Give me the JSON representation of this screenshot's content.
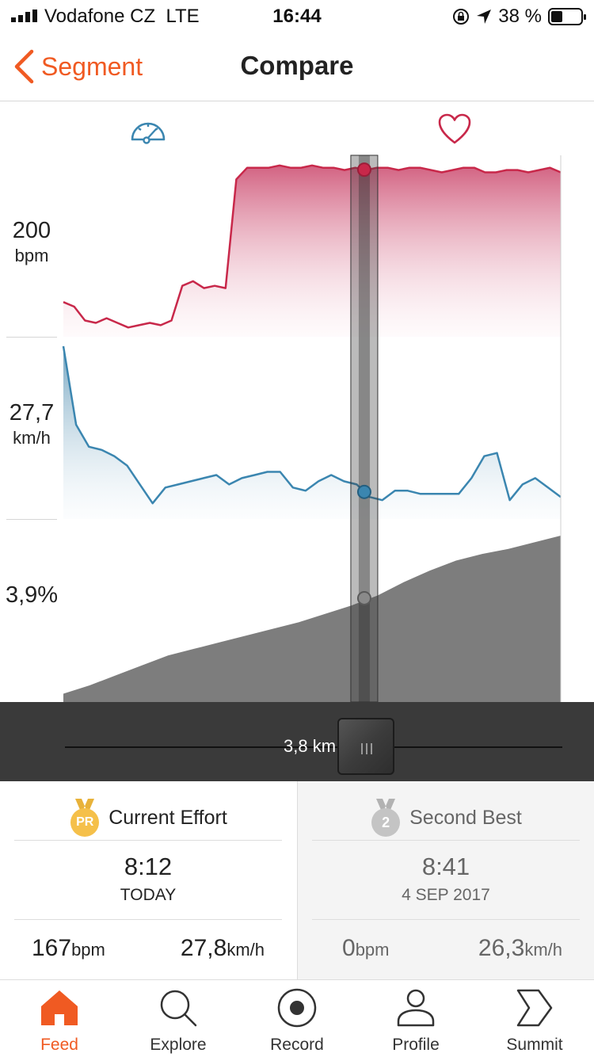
{
  "status_bar": {
    "carrier": "Vodafone CZ",
    "network": "LTE",
    "time": "16:44",
    "battery": "38 %"
  },
  "nav": {
    "back_label": "Segment",
    "title": "Compare"
  },
  "metrics": {
    "heart_rate": {
      "value": "200",
      "unit": "bpm",
      "color": "#c8284a"
    },
    "speed": {
      "value": "27,7",
      "unit": "km/h",
      "color": "#3b86b0"
    },
    "grade": {
      "value": "3,9%",
      "color": "#7d7d7d"
    }
  },
  "chart_data": {
    "type": "area",
    "x_range_fraction": [
      0,
      1
    ],
    "cursor_fraction": 0.605,
    "series": [
      {
        "key": "heart_rate",
        "values": [
          160,
          158,
          152,
          151,
          153,
          151,
          149,
          150,
          151,
          150,
          152,
          167,
          169,
          166,
          167,
          166,
          213,
          218,
          218,
          218,
          219,
          218,
          218,
          219,
          218,
          218,
          217,
          218,
          217,
          218,
          218,
          217,
          218,
          218,
          217,
          216,
          217,
          218,
          218,
          216,
          216,
          217,
          217,
          216,
          217,
          218,
          216
        ]
      },
      {
        "key": "speed",
        "values": [
          32,
          29.5,
          28.8,
          28.7,
          28.5,
          28.2,
          27.6,
          27.0,
          27.5,
          27.6,
          27.7,
          27.8,
          27.9,
          27.6,
          27.8,
          27.9,
          28.0,
          28.0,
          27.5,
          27.4,
          27.7,
          27.9,
          27.7,
          27.6,
          27.2,
          27.1,
          27.4,
          27.4,
          27.3,
          27.3,
          27.3,
          27.3,
          27.8,
          28.5,
          28.6,
          27.1,
          27.6,
          27.8,
          27.5,
          27.2
        ]
      },
      {
        "key": "grade",
        "values": [
          0.5,
          1,
          1.6,
          2.2,
          2.8,
          3.2,
          3.6,
          4,
          4.4,
          4.8,
          5.3,
          5.8,
          6.4,
          7.2,
          7.9,
          8.5,
          8.9,
          9.2,
          9.6,
          10
        ]
      }
    ]
  },
  "scrubber": {
    "distance": "3,8 km"
  },
  "efforts": {
    "current": {
      "badge": "PR",
      "title": "Current Effort",
      "time": "8:12",
      "date": "TODAY",
      "hr_value": "167",
      "hr_unit": "bpm",
      "speed_value": "27,8",
      "speed_unit": "km/h"
    },
    "second": {
      "badge": "2",
      "title": "Second Best",
      "time": "8:41",
      "date": "4 SEP 2017",
      "hr_value": "0",
      "hr_unit": "bpm",
      "speed_value": "26,3",
      "speed_unit": "km/h"
    }
  },
  "tabs": [
    {
      "label": "Feed",
      "icon": "home-icon",
      "active": true
    },
    {
      "label": "Explore",
      "icon": "search-icon",
      "active": false
    },
    {
      "label": "Record",
      "icon": "record-icon",
      "active": false
    },
    {
      "label": "Profile",
      "icon": "person-icon",
      "active": false
    },
    {
      "label": "Summit",
      "icon": "summit-icon",
      "active": false
    }
  ],
  "colors": {
    "accent": "#f05a22",
    "heart_rate": "#c8284a",
    "speed": "#3b86b0",
    "elevation": "#7d7d7d"
  }
}
